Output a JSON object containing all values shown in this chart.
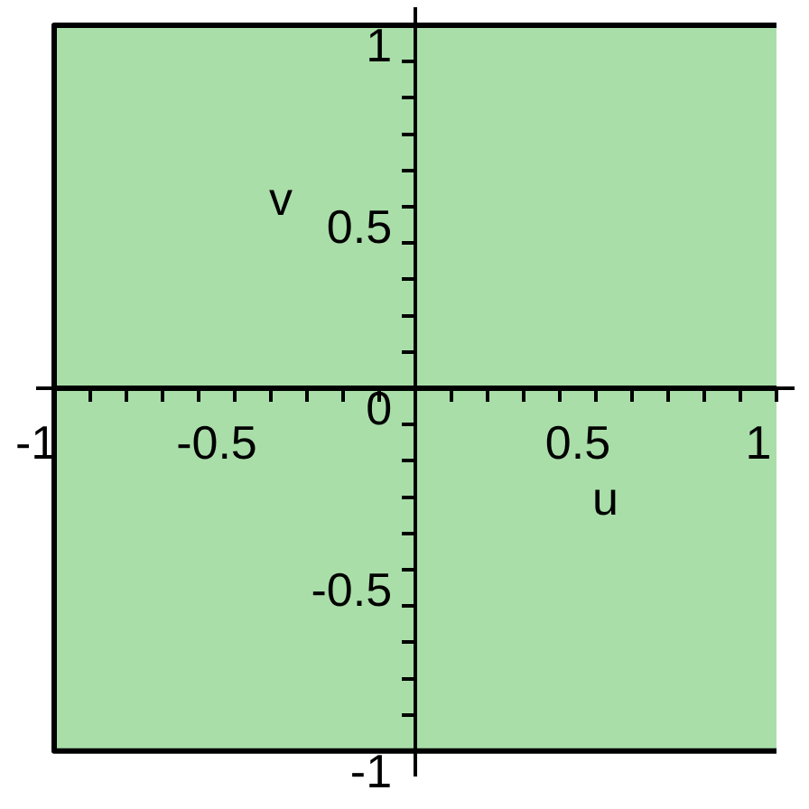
{
  "chart_data": {
    "type": "area",
    "xlabel": "u",
    "ylabel": "v",
    "xlim": [
      -1.05,
      1.05
    ],
    "ylim": [
      -1.07,
      1.05
    ],
    "xticks": [
      -1,
      {
        "value": -0.9,
        "label": null
      },
      {
        "value": -0.8,
        "label": null
      },
      {
        "value": -0.7,
        "label": null
      },
      {
        "value": -0.6,
        "label": null
      },
      -0.5,
      {
        "value": -0.4,
        "label": null
      },
      {
        "value": -0.3,
        "label": null
      },
      {
        "value": -0.2,
        "label": null
      },
      {
        "value": -0.1,
        "label": null
      },
      {
        "value": 0.1,
        "label": null
      },
      {
        "value": 0.2,
        "label": null
      },
      {
        "value": 0.3,
        "label": null
      },
      {
        "value": 0.4,
        "label": null
      },
      0.5,
      {
        "value": 0.6,
        "label": null
      },
      {
        "value": 0.7,
        "label": null
      },
      {
        "value": 0.8,
        "label": null
      },
      {
        "value": 0.9,
        "label": null
      },
      1
    ],
    "yticks": [
      -1,
      {
        "value": -0.9,
        "label": null
      },
      {
        "value": -0.8,
        "label": null
      },
      {
        "value": -0.7,
        "label": null
      },
      {
        "value": -0.6,
        "label": null
      },
      -0.5,
      {
        "value": -0.4,
        "label": null
      },
      {
        "value": -0.3,
        "label": null
      },
      {
        "value": -0.2,
        "label": null
      },
      {
        "value": -0.1,
        "label": null
      },
      0,
      {
        "value": 0.1,
        "label": null
      },
      {
        "value": 0.2,
        "label": null
      },
      {
        "value": 0.3,
        "label": null
      },
      {
        "value": 0.4,
        "label": null
      },
      0.5,
      {
        "value": 0.6,
        "label": null
      },
      {
        "value": 0.7,
        "label": null
      },
      {
        "value": 0.8,
        "label": null
      },
      {
        "value": 0.9,
        "label": null
      },
      1
    ],
    "x": [
      -1,
      1
    ],
    "series": [
      {
        "color": "#a9dea9",
        "values": [
          1,
          1
        ]
      },
      {
        "color": "#a9dea9",
        "values": [
          -1,
          -1
        ]
      }
    ]
  }
}
